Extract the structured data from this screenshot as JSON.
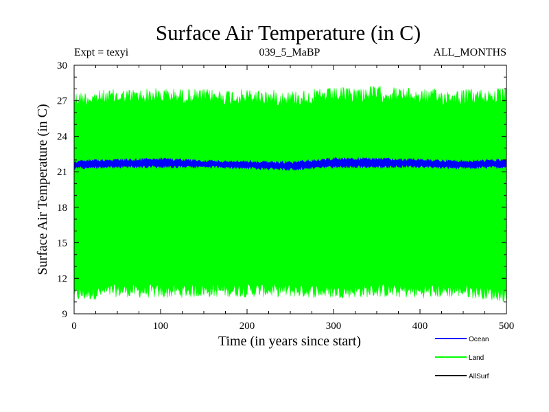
{
  "chart_data": {
    "type": "line",
    "title": "Surface Air Temperature (in C)",
    "header": {
      "left": "Expt = texyi",
      "center": "039_5_MaBP",
      "right": "ALL_MONTHS"
    },
    "xlabel": "Time (in years since start)",
    "ylabel": "Surface Air Temperature (in C)",
    "xlim": [
      0,
      500
    ],
    "ylim": [
      9,
      30
    ],
    "xticks": [
      0,
      100,
      200,
      300,
      400,
      500
    ],
    "yticks": [
      9,
      12,
      15,
      18,
      21,
      24,
      27,
      30
    ],
    "grid": false,
    "legend_position": "bottom-right",
    "series": [
      {
        "name": "Ocean",
        "color": "#0000ff",
        "band": {
          "x": [
            0,
            50,
            100,
            150,
            200,
            250,
            300,
            350,
            400,
            450,
            500
          ],
          "min": [
            21.2,
            21.3,
            21.3,
            21.3,
            21.2,
            21.1,
            21.3,
            21.3,
            21.3,
            21.2,
            21.3
          ],
          "max": [
            22.0,
            22.1,
            22.2,
            22.0,
            22.0,
            21.9,
            22.2,
            22.2,
            22.1,
            22.0,
            22.1
          ],
          "mean": [
            21.6,
            21.7,
            21.7,
            21.6,
            21.6,
            21.5,
            21.7,
            21.7,
            21.7,
            21.6,
            21.7
          ]
        }
      },
      {
        "name": "Land",
        "color": "#00ff00",
        "band": {
          "x": [
            0,
            50,
            100,
            150,
            200,
            250,
            300,
            350,
            400,
            450,
            500
          ],
          "min": [
            10.0,
            10.4,
            10.3,
            10.4,
            10.4,
            10.4,
            10.3,
            10.4,
            10.3,
            10.4,
            10.0
          ],
          "max": [
            27.8,
            28.0,
            28.1,
            28.0,
            28.0,
            27.9,
            28.1,
            28.3,
            28.0,
            28.0,
            28.1
          ],
          "mean": [
            19.0,
            19.2,
            19.2,
            19.2,
            19.2,
            19.1,
            19.2,
            19.3,
            19.2,
            19.2,
            19.1
          ]
        }
      },
      {
        "name": "AllSurf",
        "color": "#000000",
        "band": null
      }
    ]
  }
}
